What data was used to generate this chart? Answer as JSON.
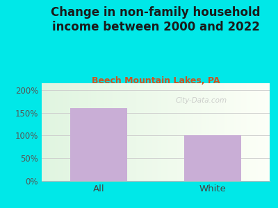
{
  "title": "Change in non-family household\nincome between 2000 and 2022",
  "subtitle": "Beech Mountain Lakes, PA",
  "categories": [
    "All",
    "White"
  ],
  "values": [
    160,
    100
  ],
  "bar_color": "#c9aed6",
  "title_color": "#1a1a1a",
  "subtitle_color": "#cc5522",
  "background_outer": "#00e8e8",
  "ytick_color": "#555555",
  "xtick_color": "#444444",
  "yticks": [
    0,
    50,
    100,
    150,
    200
  ],
  "ylim": [
    0,
    215
  ],
  "watermark": "City-Data.com",
  "title_fontsize": 12,
  "subtitle_fontsize": 9
}
